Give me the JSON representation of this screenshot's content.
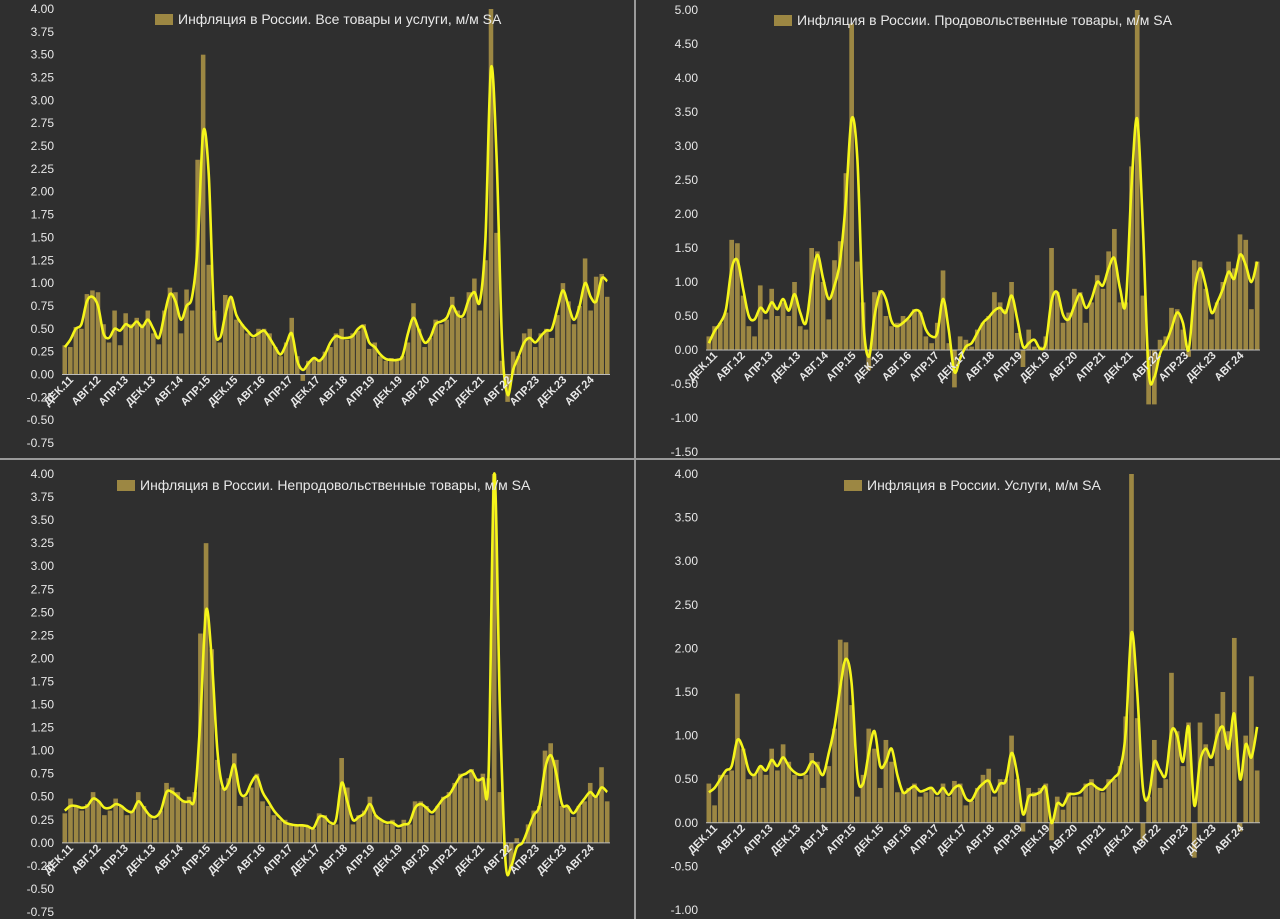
{
  "colors": {
    "background": "#2f2f2f",
    "bar": "#9c8743",
    "line": "#f5f51a",
    "text": "#e8e8e8",
    "axis": "#bdbdbd"
  },
  "chart_data": [
    {
      "type": "bar",
      "title": "Инфляция в России. Все товары и услуги, м/м SA",
      "legend": "top-center",
      "yticks": [
        "4.00",
        "3.75",
        "3.50",
        "3.25",
        "3.00",
        "2.75",
        "2.50",
        "2.25",
        "2.00",
        "1.75",
        "1.50",
        "1.25",
        "1.00",
        "0.75",
        "0.50",
        "0.25",
        "0.00",
        "-0.25",
        "-0.50",
        "-0.75"
      ],
      "ylim": [
        -0.75,
        4.0
      ],
      "xticks": [
        "ДЕК.11",
        "АВГ.12",
        "АПР.13",
        "ДЕК.13",
        "АВГ.14",
        "АПР.15",
        "ДЕК.15",
        "АВГ.16",
        "АПР.17",
        "ДЕК.17",
        "АВГ.18",
        "АПР.19",
        "ДЕК.19",
        "АВГ.20",
        "АПР.21",
        "ДЕК.21",
        "АВГ.22",
        "АПР.23",
        "ДЕК.23",
        "АВГ.24"
      ],
      "values": [
        0.32,
        0.3,
        0.52,
        0.5,
        0.88,
        0.92,
        0.9,
        0.55,
        0.35,
        0.7,
        0.32,
        0.67,
        0.55,
        0.62,
        0.55,
        0.7,
        0.45,
        0.33,
        0.7,
        0.95,
        0.9,
        0.45,
        0.93,
        0.7,
        2.35,
        3.5,
        1.2,
        0.7,
        0.35,
        0.87,
        0.85,
        0.6,
        0.55,
        0.45,
        0.4,
        0.5,
        0.5,
        0.45,
        0.3,
        0.2,
        0.35,
        0.62,
        0.2,
        -0.07,
        0.15,
        0.18,
        0.15,
        0.25,
        0.3,
        0.45,
        0.5,
        0.38,
        0.45,
        0.48,
        0.55,
        0.28,
        0.35,
        0.2,
        0.15,
        0.18,
        0.15,
        0.2,
        0.35,
        0.78,
        0.5,
        0.3,
        0.4,
        0.6,
        0.55,
        0.6,
        0.85,
        0.7,
        0.62,
        0.9,
        1.05,
        0.7,
        1.25,
        4.0,
        1.55,
        0.15,
        -0.3,
        0.25,
        0.2,
        0.45,
        0.5,
        0.3,
        0.45,
        0.5,
        0.4,
        0.65,
        1.0,
        0.8,
        0.55,
        0.75,
        1.27,
        0.7,
        1.07,
        1.1,
        0.85
      ],
      "line": [
        0.3,
        0.38,
        0.5,
        0.55,
        0.8,
        0.85,
        0.75,
        0.45,
        0.4,
        0.5,
        0.48,
        0.55,
        0.52,
        0.58,
        0.52,
        0.6,
        0.5,
        0.4,
        0.65,
        0.88,
        0.8,
        0.6,
        0.75,
        0.85,
        1.4,
        2.65,
        2.2,
        0.6,
        0.4,
        0.65,
        0.85,
        0.65,
        0.55,
        0.48,
        0.42,
        0.45,
        0.48,
        0.4,
        0.3,
        0.22,
        0.33,
        0.45,
        0.15,
        0.05,
        0.12,
        0.18,
        0.15,
        0.22,
        0.35,
        0.42,
        0.4,
        0.4,
        0.42,
        0.5,
        0.52,
        0.35,
        0.3,
        0.22,
        0.17,
        0.16,
        0.16,
        0.2,
        0.45,
        0.62,
        0.48,
        0.35,
        0.4,
        0.55,
        0.58,
        0.62,
        0.75,
        0.65,
        0.65,
        0.82,
        0.9,
        0.8,
        1.5,
        3.35,
        2.4,
        0.35,
        -0.22,
        0.05,
        0.2,
        0.35,
        0.4,
        0.35,
        0.42,
        0.48,
        0.5,
        0.72,
        0.92,
        0.75,
        0.6,
        0.75,
        1.0,
        0.85,
        0.8,
        1.05,
        1.02
      ]
    },
    {
      "type": "bar",
      "title": "Инфляция в России. Продовольственные товары, м/м SA",
      "legend": "top-center",
      "yticks": [
        "5.00",
        "4.50",
        "4.00",
        "3.50",
        "3.00",
        "2.50",
        "2.00",
        "1.50",
        "1.00",
        "0.50",
        "0.00",
        "-0.50",
        "-1.00",
        "-1.50"
      ],
      "ylim": [
        -1.5,
        5.0
      ],
      "xticks": [
        "ДЕК.11",
        "АВГ.12",
        "АПР.13",
        "ДЕК.13",
        "АВГ.14",
        "АПР.15",
        "ДЕК.15",
        "АВГ.16",
        "АПР.17",
        "ДЕК.17",
        "АВГ.18",
        "АПР.19",
        "ДЕК.19",
        "АВГ.20",
        "АПР.21",
        "ДЕК.21",
        "АВГ.22",
        "АПР.23",
        "ДЕК.23",
        "АВГ.24"
      ],
      "values": [
        0.2,
        0.35,
        0.4,
        0.55,
        1.62,
        1.57,
        0.8,
        0.35,
        0.2,
        0.95,
        0.45,
        0.9,
        0.5,
        0.7,
        0.5,
        1.0,
        0.35,
        0.3,
        1.5,
        1.45,
        1.0,
        0.45,
        1.32,
        1.6,
        2.6,
        4.8,
        1.3,
        0.7,
        -0.3,
        0.85,
        0.88,
        0.5,
        0.35,
        0.4,
        0.5,
        0.45,
        0.6,
        0.55,
        0.2,
        0.1,
        0.4,
        1.17,
        0.1,
        -0.55,
        0.2,
        0.15,
        0.05,
        0.3,
        0.4,
        0.5,
        0.85,
        0.7,
        0.6,
        1.0,
        0.25,
        -0.25,
        0.3,
        0.05,
        0.05,
        0.2,
        1.5,
        0.85,
        0.4,
        0.55,
        0.9,
        0.85,
        0.4,
        0.7,
        1.1,
        0.9,
        1.45,
        1.78,
        0.7,
        0.7,
        2.7,
        5.0,
        0.8,
        -0.8,
        -0.8,
        0.15,
        0.2,
        0.62,
        0.6,
        0.3,
        -0.1,
        1.32,
        1.3,
        0.9,
        0.45,
        0.7,
        1.0,
        1.3,
        1.2,
        1.7,
        1.62,
        0.6,
        1.3
      ],
      "line": [
        0.1,
        0.28,
        0.4,
        0.6,
        1.2,
        1.32,
        0.9,
        0.5,
        0.45,
        0.62,
        0.55,
        0.7,
        0.6,
        0.75,
        0.58,
        0.82,
        0.55,
        0.4,
        1.0,
        1.4,
        1.05,
        0.75,
        0.95,
        1.32,
        2.2,
        3.4,
        2.8,
        0.5,
        -0.1,
        0.5,
        0.85,
        0.75,
        0.42,
        0.35,
        0.4,
        0.48,
        0.58,
        0.55,
        0.3,
        0.2,
        0.25,
        0.75,
        0.3,
        -0.32,
        -0.12,
        0.05,
        0.1,
        0.25,
        0.4,
        0.48,
        0.58,
        0.62,
        0.55,
        0.8,
        0.45,
        0.05,
        0.1,
        0.15,
        0.02,
        0.1,
        0.72,
        0.85,
        0.52,
        0.45,
        0.65,
        0.82,
        0.62,
        0.75,
        1.0,
        0.95,
        1.2,
        1.35,
        0.9,
        0.7,
        2.4,
        3.4,
        1.8,
        -0.3,
        -0.4,
        -0.05,
        0.1,
        0.32,
        0.55,
        0.4,
        0.0,
        0.85,
        1.2,
        0.95,
        0.55,
        0.7,
        0.9,
        1.15,
        1.05,
        1.4,
        1.25,
        1.0,
        1.3
      ]
    },
    {
      "type": "bar",
      "title": "Инфляция в России. Непродовольственные товары, м/м SA",
      "legend": "top-center",
      "yticks": [
        "4.00",
        "3.75",
        "3.50",
        "3.25",
        "3.00",
        "2.75",
        "2.50",
        "2.25",
        "2.00",
        "1.75",
        "1.50",
        "1.25",
        "1.00",
        "0.75",
        "0.50",
        "0.25",
        "0.00",
        "-0.25",
        "-0.50",
        "-0.75"
      ],
      "ylim": [
        -0.75,
        4.0
      ],
      "xticks": [
        "ДЕК.11",
        "АВГ.12",
        "АПР.13",
        "ДЕК.13",
        "АВГ.14",
        "АПР.15",
        "ДЕК.15",
        "АВГ.16",
        "АПР.17",
        "ДЕК.17",
        "АВГ.18",
        "АПР.19",
        "ДЕК.19",
        "АВГ.20",
        "АПР.21",
        "ДЕК.21",
        "АВГ.22",
        "АПР.23",
        "ДЕК.23",
        "АВГ.24"
      ],
      "values": [
        0.32,
        0.48,
        0.4,
        0.35,
        0.42,
        0.55,
        0.45,
        0.3,
        0.35,
        0.48,
        0.4,
        0.3,
        0.35,
        0.55,
        0.4,
        0.3,
        0.25,
        0.35,
        0.65,
        0.6,
        0.55,
        0.45,
        0.5,
        0.55,
        2.27,
        3.25,
        2.1,
        0.9,
        0.6,
        0.7,
        0.97,
        0.4,
        0.5,
        0.6,
        0.75,
        0.45,
        0.4,
        0.3,
        0.25,
        0.25,
        0.2,
        0.18,
        0.2,
        0.18,
        0.15,
        0.32,
        0.3,
        0.2,
        0.2,
        0.92,
        0.6,
        0.2,
        0.3,
        0.35,
        0.5,
        0.3,
        0.25,
        0.2,
        0.25,
        0.15,
        0.25,
        0.2,
        0.45,
        0.45,
        0.4,
        0.3,
        0.4,
        0.5,
        0.55,
        0.65,
        0.75,
        0.7,
        0.8,
        0.7,
        0.75,
        0.7,
        4.0,
        0.55,
        -0.1,
        -0.3,
        0.05,
        0.0,
        0.2,
        0.35,
        0.4,
        1.0,
        1.08,
        0.9,
        0.4,
        0.4,
        0.28,
        0.4,
        0.45,
        0.65,
        0.5,
        0.82,
        0.45
      ],
      "line": [
        0.35,
        0.4,
        0.4,
        0.38,
        0.4,
        0.48,
        0.45,
        0.38,
        0.38,
        0.42,
        0.4,
        0.35,
        0.34,
        0.45,
        0.38,
        0.3,
        0.28,
        0.35,
        0.55,
        0.55,
        0.5,
        0.45,
        0.45,
        0.5,
        1.35,
        2.52,
        2.0,
        1.0,
        0.6,
        0.65,
        0.85,
        0.55,
        0.52,
        0.65,
        0.72,
        0.55,
        0.45,
        0.35,
        0.28,
        0.22,
        0.2,
        0.19,
        0.19,
        0.18,
        0.16,
        0.28,
        0.28,
        0.22,
        0.25,
        0.65,
        0.45,
        0.25,
        0.28,
        0.32,
        0.42,
        0.3,
        0.25,
        0.22,
        0.22,
        0.18,
        0.2,
        0.22,
        0.38,
        0.42,
        0.38,
        0.33,
        0.4,
        0.48,
        0.52,
        0.62,
        0.72,
        0.75,
        0.78,
        0.68,
        0.7,
        0.72,
        4.0,
        1.5,
        -0.2,
        -0.25,
        -0.05,
        0.0,
        0.15,
        0.3,
        0.4,
        0.8,
        0.95,
        0.75,
        0.42,
        0.4,
        0.32,
        0.4,
        0.48,
        0.55,
        0.5,
        0.6,
        0.55
      ]
    },
    {
      "type": "bar",
      "title": "Инфляция в России. Услуги, м/м SA",
      "legend": "top-center",
      "yticks": [
        "4.00",
        "3.50",
        "3.00",
        "2.50",
        "2.00",
        "1.50",
        "1.00",
        "0.50",
        "0.00",
        "-0.50",
        "-1.00"
      ],
      "ylim": [
        -1.0,
        4.0
      ],
      "xticks": [
        "ДЕК.11",
        "АВГ.12",
        "АПР.13",
        "ДЕК.13",
        "АВГ.14",
        "АПР.15",
        "ДЕК.15",
        "АВГ.16",
        "АПР.17",
        "ДЕК.17",
        "АВГ.18",
        "АПР.19",
        "ДЕК.19",
        "АВГ.20",
        "АПР.21",
        "ДЕК.21",
        "АВГ.22",
        "АПР.23",
        "ДЕК.23",
        "АВГ.24"
      ],
      "values": [
        0.45,
        0.2,
        0.55,
        0.55,
        0.6,
        1.48,
        0.85,
        0.5,
        0.55,
        0.65,
        0.55,
        0.85,
        0.6,
        0.9,
        0.7,
        0.55,
        0.5,
        0.55,
        0.8,
        0.7,
        0.4,
        0.65,
        1.08,
        2.1,
        2.07,
        1.35,
        0.3,
        0.55,
        1.08,
        0.85,
        0.4,
        0.95,
        0.7,
        0.35,
        0.35,
        0.4,
        0.45,
        0.3,
        0.35,
        0.4,
        0.3,
        0.45,
        0.3,
        0.48,
        0.45,
        0.2,
        0.25,
        0.4,
        0.55,
        0.62,
        0.3,
        0.5,
        0.5,
        1.0,
        0.5,
        -0.1,
        0.4,
        0.35,
        0.4,
        0.45,
        -0.2,
        0.3,
        0.15,
        0.35,
        0.3,
        0.3,
        0.45,
        0.5,
        0.4,
        0.35,
        0.5,
        0.5,
        0.65,
        1.22,
        4.0,
        1.2,
        -0.2,
        0.3,
        0.95,
        0.4,
        0.5,
        1.72,
        1.05,
        0.65,
        1.15,
        -0.4,
        1.15,
        0.9,
        0.65,
        1.25,
        1.5,
        1.05,
        2.12,
        -0.1,
        1.0,
        1.68,
        0.6
      ],
      "line": [
        0.35,
        0.4,
        0.5,
        0.6,
        0.65,
        0.95,
        0.85,
        0.6,
        0.55,
        0.65,
        0.6,
        0.72,
        0.65,
        0.75,
        0.65,
        0.58,
        0.55,
        0.58,
        0.7,
        0.65,
        0.55,
        0.8,
        1.1,
        1.55,
        1.88,
        1.6,
        0.55,
        0.45,
        0.8,
        1.05,
        0.65,
        0.7,
        0.85,
        0.55,
        0.35,
        0.38,
        0.42,
        0.36,
        0.38,
        0.4,
        0.33,
        0.4,
        0.32,
        0.4,
        0.42,
        0.28,
        0.26,
        0.38,
        0.45,
        0.48,
        0.35,
        0.45,
        0.48,
        0.8,
        0.55,
        0.1,
        0.3,
        0.32,
        0.35,
        0.4,
        0.0,
        0.22,
        0.2,
        0.32,
        0.33,
        0.35,
        0.42,
        0.45,
        0.4,
        0.38,
        0.45,
        0.52,
        0.62,
        1.05,
        2.18,
        1.5,
        0.4,
        0.3,
        0.7,
        0.6,
        0.55,
        1.05,
        1.0,
        0.7,
        1.1,
        0.2,
        0.7,
        0.85,
        0.75,
        1.0,
        1.1,
        0.85,
        1.25,
        0.5,
        0.9,
        0.75,
        1.1
      ]
    }
  ]
}
